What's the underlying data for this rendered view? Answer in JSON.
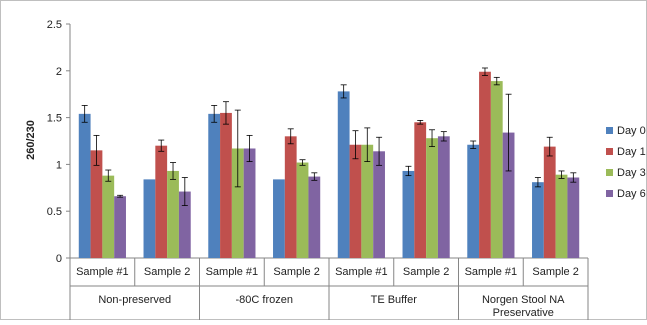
{
  "chart_data": {
    "type": "bar",
    "ylabel": "260/230",
    "ylim": [
      0,
      2.5
    ],
    "yticks": [
      "0",
      "0.5",
      "1",
      "1.5",
      "2",
      "2.5"
    ],
    "grid": false,
    "legend_position": "right",
    "groups": [
      {
        "label": "Non-preserved",
        "subcategories": [
          "Sample #1",
          "Sample 2"
        ]
      },
      {
        "label": "-80C frozen",
        "subcategories": [
          "Sample #1",
          "Sample 2"
        ]
      },
      {
        "label": "TE Buffer",
        "subcategories": [
          "Sample #1",
          "Sample 2"
        ]
      },
      {
        "label": "Norgen Stool NA Preservative",
        "subcategories": [
          "Sample #1",
          "Sample 2"
        ]
      }
    ],
    "categories": [
      "Sample #1",
      "Sample 2",
      "Sample #1",
      "Sample 2",
      "Sample #1",
      "Sample 2",
      "Sample #1",
      "Sample 2"
    ],
    "series": [
      {
        "name": "Day 0",
        "color": "#4F81BD",
        "values": [
          1.54,
          0.84,
          1.54,
          0.84,
          1.78,
          0.93,
          1.21,
          0.81
        ],
        "errors": [
          0.09,
          0.0,
          0.09,
          0.0,
          0.07,
          0.05,
          0.04,
          0.05
        ]
      },
      {
        "name": "Day 1",
        "color": "#C0504D",
        "values": [
          1.15,
          1.2,
          1.55,
          1.3,
          1.21,
          1.45,
          1.99,
          1.19
        ],
        "errors": [
          0.16,
          0.06,
          0.12,
          0.08,
          0.15,
          0.02,
          0.04,
          0.1
        ]
      },
      {
        "name": "Day 3",
        "color": "#9BBB59",
        "values": [
          0.88,
          0.93,
          1.17,
          1.02,
          1.21,
          1.28,
          1.89,
          0.89
        ],
        "errors": [
          0.06,
          0.09,
          0.41,
          0.03,
          0.18,
          0.09,
          0.04,
          0.04
        ]
      },
      {
        "name": "Day 6",
        "color": "#8064A2",
        "values": [
          0.66,
          0.71,
          1.17,
          0.87,
          1.14,
          1.3,
          1.34,
          0.86
        ],
        "errors": [
          0.01,
          0.15,
          0.14,
          0.04,
          0.15,
          0.05,
          0.41,
          0.05
        ]
      }
    ]
  }
}
